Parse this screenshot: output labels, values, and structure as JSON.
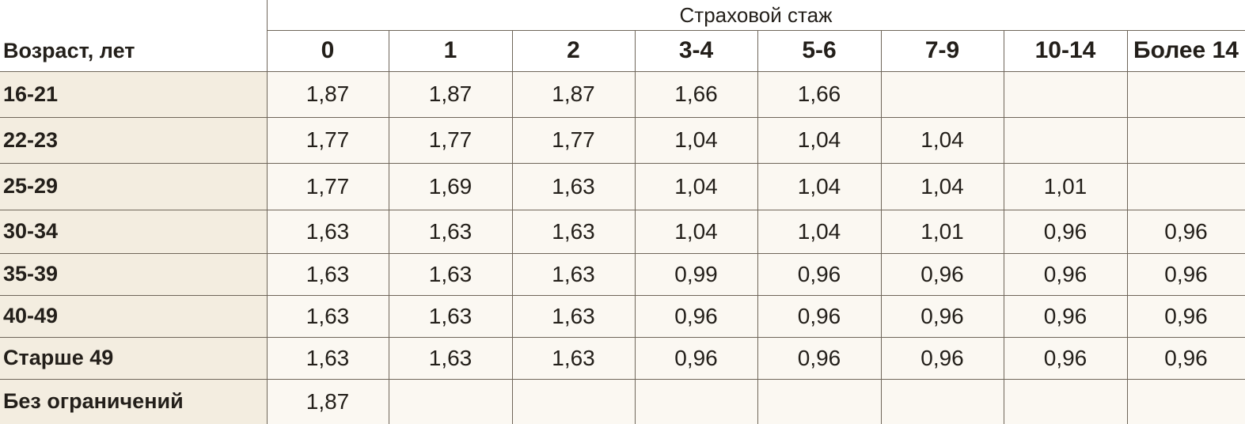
{
  "header": {
    "group_label": "Страховой стаж",
    "row_label": "Возраст, лет",
    "columns": [
      "0",
      "1",
      "2",
      "3-4",
      "5-6",
      "7-9",
      "10-14",
      "Более 14"
    ]
  },
  "table": {
    "rows": [
      {
        "label": "16-21",
        "values": [
          "1,87",
          "1,87",
          "1,87",
          "1,66",
          "1,66",
          null,
          null,
          null
        ]
      },
      {
        "label": "22-23",
        "values": [
          "1,77",
          "1,77",
          "1,77",
          "1,04",
          "1,04",
          "1,04",
          null,
          null
        ]
      },
      {
        "label": "25-29",
        "values": [
          "1,77",
          "1,69",
          "1,63",
          "1,04",
          "1,04",
          "1,04",
          "1,01",
          null
        ]
      },
      {
        "label": "30-34",
        "values": [
          "1,63",
          "1,63",
          "1,63",
          "1,04",
          "1,04",
          "1,01",
          "0,96",
          "0,96"
        ]
      },
      {
        "label": "35-39",
        "values": [
          "1,63",
          "1,63",
          "1,63",
          "0,99",
          "0,96",
          "0,96",
          "0,96",
          "0,96"
        ]
      },
      {
        "label": "40-49",
        "values": [
          "1,63",
          "1,63",
          "1,63",
          "0,96",
          "0,96",
          "0,96",
          "0,96",
          "0,96"
        ]
      },
      {
        "label": "Старше 49",
        "values": [
          "1,63",
          "1,63",
          "1,63",
          "0,96",
          "0,96",
          "0,96",
          "0,96",
          "0,96"
        ]
      },
      {
        "label": "Без ограничений",
        "values": [
          "1,87",
          null,
          null,
          null,
          null,
          null,
          null,
          null
        ]
      }
    ]
  }
}
